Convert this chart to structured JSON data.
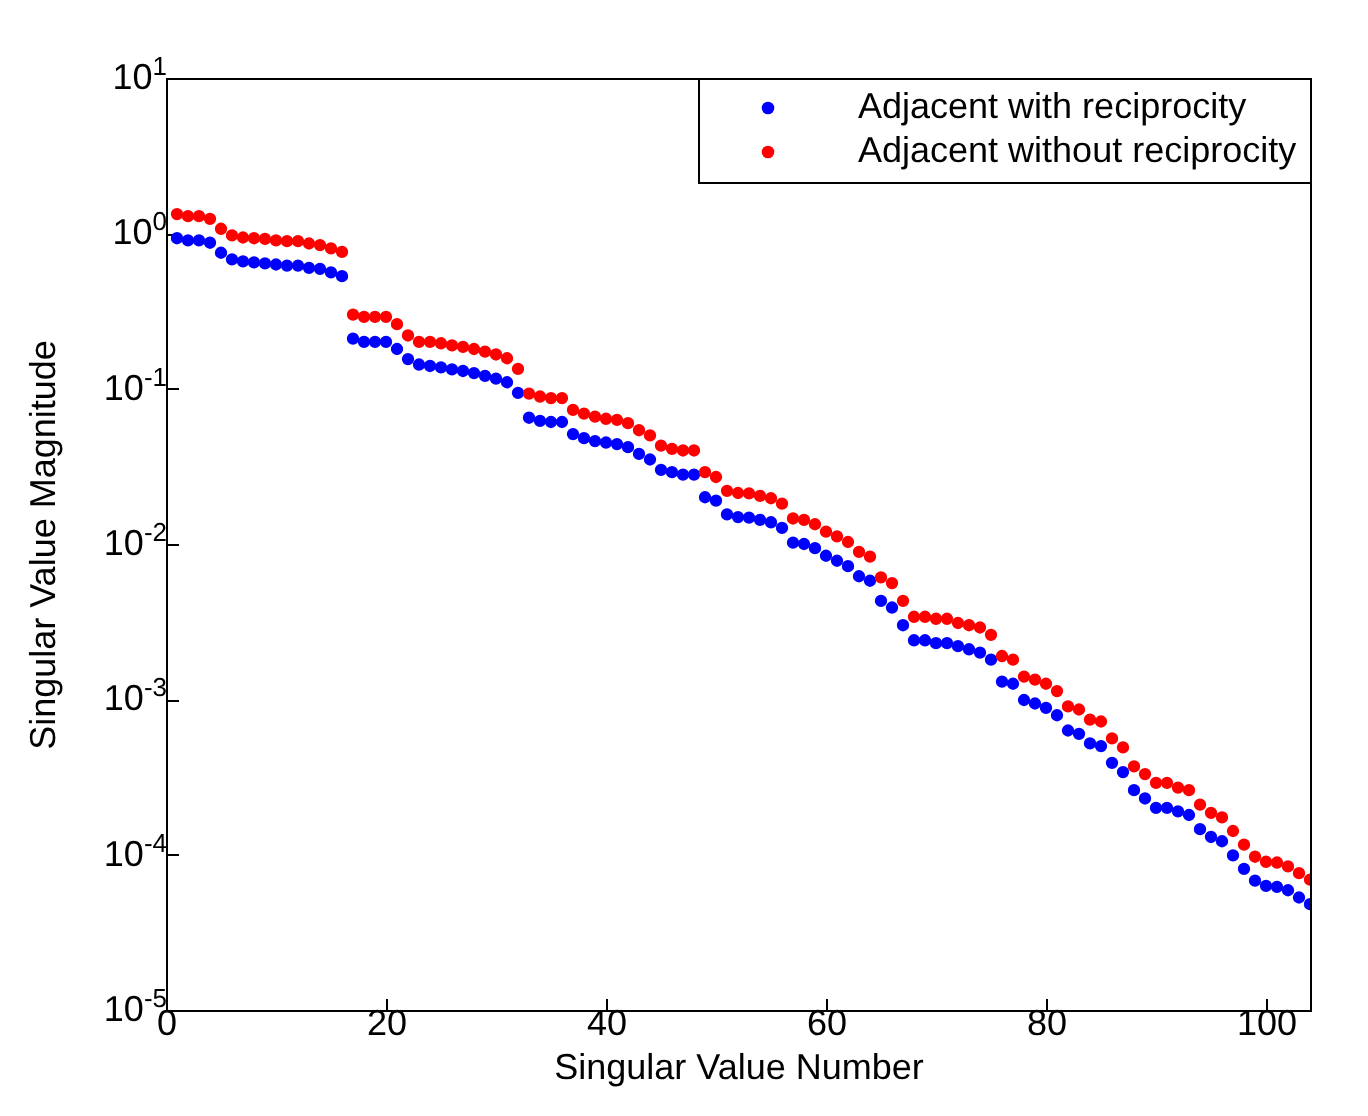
{
  "chart_data": {
    "type": "scatter",
    "xlabel": "Singular Value Number",
    "ylabel": "Singular Value Magnitude",
    "log": "y",
    "grid": false,
    "legend": "top right",
    "marker": "circle",
    "xlim": [
      0,
      104
    ],
    "xticks": [
      0,
      20,
      40,
      60,
      80,
      100
    ],
    "ylim": [
      1e-05,
      10
    ],
    "yticks": [
      {
        "value": 1e-05,
        "label": "10$^{-5}$"
      },
      {
        "value": 0.0001,
        "label": "10$^{-4}$"
      },
      {
        "value": 0.001,
        "label": "10$^{-3}$"
      },
      {
        "value": 0.01,
        "label": "10$^{-2}$"
      },
      {
        "value": 0.1,
        "label": "10$^{-1}$"
      },
      {
        "value": 1,
        "label": "10$^{0}$"
      },
      {
        "value": 10,
        "label": "10$^{1}$"
      }
    ],
    "x": [
      1,
      2,
      3,
      4,
      5,
      6,
      7,
      8,
      9,
      10,
      11,
      12,
      13,
      14,
      15,
      16,
      17,
      18,
      19,
      20,
      21,
      22,
      23,
      24,
      25,
      26,
      27,
      28,
      29,
      30,
      31,
      32,
      33,
      34,
      35,
      36,
      37,
      38,
      39,
      40,
      41,
      42,
      43,
      44,
      45,
      46,
      47,
      48,
      49,
      50,
      51,
      52,
      53,
      54,
      55,
      56,
      57,
      58,
      59,
      60,
      61,
      62,
      63,
      64,
      65,
      66,
      67,
      68,
      69,
      70,
      71,
      72,
      73,
      74,
      75,
      76,
      77,
      78,
      79,
      80,
      81,
      82,
      83,
      84,
      85,
      86,
      87,
      88,
      89,
      90,
      91,
      92,
      93,
      94,
      95,
      96,
      97,
      98,
      99,
      100,
      101,
      102,
      103,
      104
    ],
    "series": [
      {
        "name": "Adjacent with reciprocity",
        "color": "#0000ff",
        "values": [
          0.93,
          0.9,
          0.9,
          0.87,
          0.75,
          0.68,
          0.66,
          0.65,
          0.64,
          0.63,
          0.62,
          0.62,
          0.6,
          0.59,
          0.56,
          0.53,
          0.21,
          0.2,
          0.2,
          0.2,
          0.18,
          0.155,
          0.143,
          0.14,
          0.137,
          0.133,
          0.13,
          0.126,
          0.121,
          0.116,
          0.11,
          0.094,
          0.065,
          0.062,
          0.061,
          0.061,
          0.051,
          0.048,
          0.046,
          0.045,
          0.044,
          0.042,
          0.038,
          0.035,
          0.03,
          0.029,
          0.028,
          0.028,
          0.02,
          0.019,
          0.0155,
          0.0149,
          0.0148,
          0.0143,
          0.0138,
          0.0127,
          0.0102,
          0.01,
          0.0094,
          0.0084,
          0.0078,
          0.0072,
          0.0062,
          0.0058,
          0.0043,
          0.0039,
          0.003,
          0.0024,
          0.0024,
          0.0023,
          0.0023,
          0.0022,
          0.0021,
          0.002,
          0.0018,
          0.0013,
          0.00126,
          0.00099,
          0.00094,
          0.00088,
          0.00079,
          0.00063,
          0.0006,
          0.00052,
          0.0005,
          0.00039,
          0.00034,
          0.00026,
          0.00023,
          0.0002,
          0.0002,
          0.00019,
          0.00018,
          0.000146,
          0.00013,
          0.000122,
          9.9e-05,
          8.1e-05,
          6.8e-05,
          6.3e-05,
          6.2e-05,
          5.9e-05,
          5.3e-05,
          4.8e-05
        ]
      },
      {
        "name": "Adjacent without reciprocity",
        "color": "#ff0000",
        "values": [
          1.33,
          1.29,
          1.29,
          1.24,
          1.07,
          0.97,
          0.94,
          0.93,
          0.92,
          0.9,
          0.89,
          0.89,
          0.86,
          0.84,
          0.8,
          0.76,
          0.3,
          0.29,
          0.29,
          0.29,
          0.26,
          0.22,
          0.2,
          0.2,
          0.196,
          0.19,
          0.186,
          0.18,
          0.173,
          0.166,
          0.157,
          0.134,
          0.093,
          0.089,
          0.087,
          0.087,
          0.073,
          0.069,
          0.066,
          0.064,
          0.063,
          0.06,
          0.054,
          0.05,
          0.043,
          0.041,
          0.04,
          0.04,
          0.029,
          0.027,
          0.022,
          0.0213,
          0.0212,
          0.0204,
          0.0197,
          0.0182,
          0.0146,
          0.0143,
          0.0134,
          0.012,
          0.0112,
          0.0103,
          0.0089,
          0.0083,
          0.0061,
          0.0056,
          0.0043,
          0.0034,
          0.0034,
          0.0033,
          0.0033,
          0.0031,
          0.003,
          0.0029,
          0.0026,
          0.0019,
          0.0018,
          0.0014,
          0.00134,
          0.00126,
          0.00113,
          0.0009,
          0.00086,
          0.00074,
          0.00072,
          0.00056,
          0.00049,
          0.00037,
          0.00033,
          0.00029,
          0.00029,
          0.00027,
          0.00026,
          0.00021,
          0.000186,
          0.000174,
          0.000142,
          0.000116,
          9.7e-05,
          9e-05,
          8.9e-05,
          8.4e-05,
          7.6e-05,
          6.9e-05
        ]
      }
    ]
  }
}
